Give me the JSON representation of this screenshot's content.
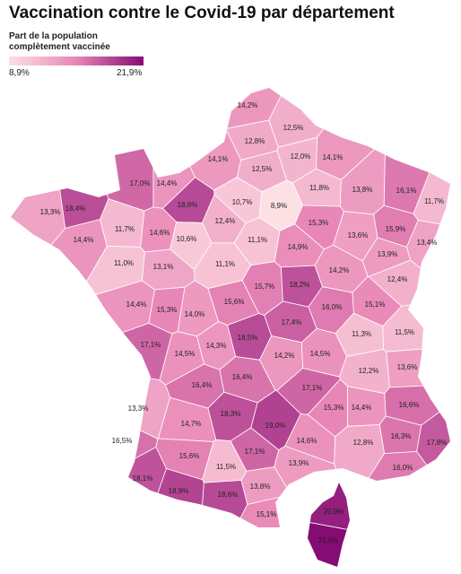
{
  "chart_data": {
    "type": "choropleth",
    "title": "Vaccination contre le Covid-19 par département",
    "legend_title": "Part de la population complètement vaccinée",
    "scale": [
      {
        "value": 8.9,
        "label": "8,9%"
      },
      {
        "value": 21.9,
        "label": "21,9%"
      }
    ],
    "colors": [
      "#fde0e3",
      "#e886b6",
      "#850c74"
    ],
    "values": [
      14.2,
      12.5,
      12.8,
      14.1,
      12.0,
      14.1,
      12.5,
      17.0,
      14.4,
      11.8,
      13.8,
      16.1,
      11.7,
      13.3,
      18.4,
      18.6,
      10.7,
      8.9,
      12.4,
      15.3,
      15.9,
      14.4,
      11.7,
      14.6,
      10.6,
      11.1,
      14.9,
      13.6,
      13.4,
      11.0,
      13.1,
      11.1,
      14.2,
      13.9,
      12.4,
      15.7,
      18.2,
      14.4,
      15.3,
      15.6,
      14.0,
      16.0,
      15.1,
      17.4,
      17.1,
      18.5,
      14.3,
      11.3,
      11.5,
      14.5,
      14.2,
      14.5,
      12.2,
      13.6,
      16.4,
      16.4,
      17.1,
      16.6,
      13.3,
      18.3,
      19.0,
      15.3,
      14.4,
      14.7,
      16.3,
      17.8,
      16.5,
      14.6,
      12.8,
      17.1,
      15.6,
      13.9,
      11.5,
      16.0,
      18.1,
      18.9,
      13.8,
      18.6,
      15.1,
      20.9,
      21.9
    ],
    "value_labels": [
      "14,2%",
      "12,5%",
      "12,8%",
      "14,1%",
      "12,0%",
      "14,1%",
      "12,5%",
      "17,0%",
      "14,4%",
      "11,8%",
      "13,8%",
      "16,1%",
      "11,7%",
      "13,3%",
      "18,4%",
      "18,6%",
      "10,7%",
      "8,9%",
      "12,4%",
      "15,3%",
      "15,9%",
      "14,4%",
      "11,7%",
      "14,6%",
      "10,6%",
      "11,1%",
      "14,9%",
      "13,6%",
      "13,4%",
      "11,0%",
      "13,1%",
      "11,1%",
      "14,2%",
      "13,9%",
      "12,4%",
      "15,7%",
      "18,2%",
      "14,4%",
      "15,3%",
      "15,6%",
      "14,0%",
      "16,0%",
      "15,1%",
      "17,4%",
      "17,1%",
      "18,5%",
      "14,3%",
      "11,3%",
      "11,5%",
      "14,5%",
      "14,2%",
      "14,5%",
      "12,2%",
      "13,6%",
      "16,4%",
      "16,4%",
      "17,1%",
      "16,6%",
      "13,3%",
      "18,3%",
      "19,0%",
      "15,3%",
      "14,4%",
      "14,7%",
      "16,3%",
      "17,8%",
      "16,5%",
      "14,6%",
      "12,8%",
      "17,1%",
      "15,6%",
      "13,9%",
      "11,5%",
      "16,0%",
      "18,1%",
      "18,9%",
      "13,8%",
      "18,6%",
      "15,1%",
      "20,9%",
      "21,9%"
    ]
  }
}
